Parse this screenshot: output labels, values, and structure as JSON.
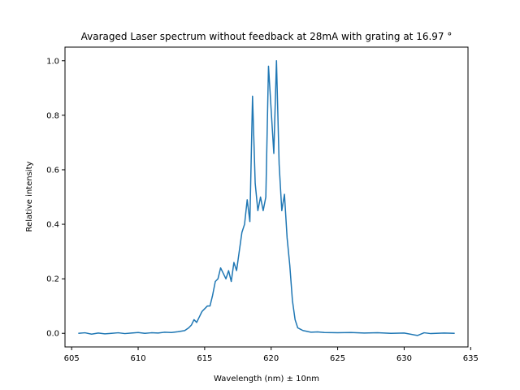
{
  "chart_data": {
    "type": "line",
    "title": "Avaraged Laser spectrum without feedback at 28mA with grating at 16.97 °",
    "xlabel": "Wavelength (nm) ± 10nm",
    "ylabel": "Relative intensity",
    "xlim": [
      604.5,
      634.8
    ],
    "ylim": [
      -0.05,
      1.05
    ],
    "xticks": [
      605,
      610,
      615,
      620,
      625,
      630,
      635
    ],
    "yticks": [
      0.0,
      0.2,
      0.4,
      0.6,
      0.8,
      1.0
    ],
    "xtick_labels": [
      "605",
      "610",
      "615",
      "620",
      "625",
      "630",
      "635"
    ],
    "ytick_labels": [
      "0.0",
      "0.2",
      "0.4",
      "0.6",
      "0.8",
      "1.0"
    ],
    "grid": false,
    "series": [
      {
        "color": "#1f77b4",
        "x": [
          605.5,
          606.0,
          606.5,
          607.0,
          607.5,
          608.0,
          608.5,
          609.0,
          609.5,
          610.0,
          610.5,
          611.0,
          611.5,
          612.0,
          612.5,
          613.0,
          613.5,
          613.8,
          614.0,
          614.2,
          614.4,
          614.6,
          614.8,
          615.0,
          615.2,
          615.4,
          615.6,
          615.8,
          616.0,
          616.2,
          616.4,
          616.6,
          616.8,
          617.0,
          617.2,
          617.4,
          617.6,
          617.8,
          618.0,
          618.2,
          618.4,
          618.6,
          618.8,
          619.0,
          619.2,
          619.4,
          619.6,
          619.8,
          620.0,
          620.2,
          620.4,
          620.6,
          620.8,
          621.0,
          621.2,
          621.4,
          621.6,
          621.8,
          622.0,
          622.2,
          622.4,
          622.6,
          622.8,
          623.0,
          623.5,
          624.0,
          625.0,
          626.0,
          627.0,
          628.0,
          629.0,
          630.0,
          631.0,
          631.5,
          632.0,
          633.0,
          633.8
        ],
        "y": [
          0.0,
          0.002,
          -0.003,
          0.001,
          -0.002,
          0.0,
          0.002,
          -0.001,
          0.001,
          0.003,
          0.0,
          0.002,
          0.001,
          0.004,
          0.003,
          0.006,
          0.01,
          0.02,
          0.03,
          0.05,
          0.04,
          0.06,
          0.08,
          0.09,
          0.1,
          0.1,
          0.14,
          0.19,
          0.2,
          0.24,
          0.22,
          0.2,
          0.23,
          0.19,
          0.26,
          0.23,
          0.3,
          0.37,
          0.4,
          0.49,
          0.41,
          0.87,
          0.55,
          0.45,
          0.5,
          0.45,
          0.5,
          0.98,
          0.82,
          0.66,
          1.0,
          0.62,
          0.45,
          0.51,
          0.35,
          0.25,
          0.12,
          0.05,
          0.02,
          0.015,
          0.01,
          0.008,
          0.006,
          0.004,
          0.005,
          0.003,
          0.002,
          0.003,
          0.001,
          0.002,
          0.0,
          0.001,
          -0.008,
          0.002,
          -0.001,
          0.001,
          0.0
        ]
      }
    ]
  }
}
